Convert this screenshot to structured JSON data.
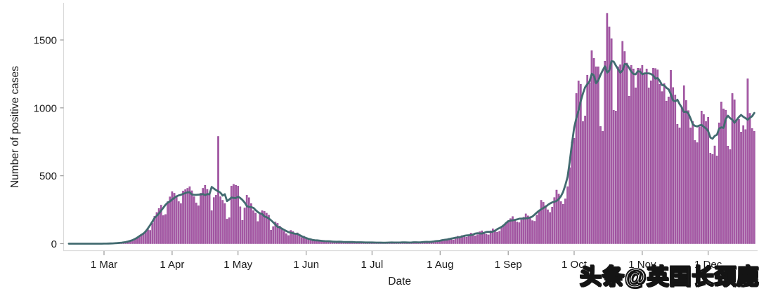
{
  "chart_data": {
    "type": "bar",
    "title": "",
    "xlabel": "Date",
    "ylabel": "Number of positive cases",
    "y_ticks": [
      0,
      500,
      1000,
      1500
    ],
    "ylim": [
      0,
      1770
    ],
    "x_tick_labels": [
      "1 Mar",
      "1 Apr",
      "1 May",
      "1 Jun",
      "1 Jul",
      "1 Aug",
      "1 Sep",
      "1 Oct",
      "1 Nov",
      "1 Dec"
    ],
    "x_tick_day_index": [
      0,
      31,
      61,
      92,
      122,
      153,
      184,
      214,
      245,
      275
    ],
    "start_label": "1 Mar",
    "lead_in_zero_days": 16,
    "grid": "off",
    "legend": "none",
    "bar_color": "#a85ba6",
    "bar_edge_color": "#8d4292",
    "line_color": "#426b70",
    "line_smoothing_window": 7,
    "axis_border_color": "#d9d9d9",
    "tick_color": "#999999",
    "label_color": "#1a1a1a",
    "values": [
      0,
      0,
      1,
      1,
      2,
      3,
      4,
      5,
      6,
      8,
      10,
      14,
      18,
      25,
      30,
      38,
      50,
      62,
      78,
      95,
      103,
      98,
      150,
      202,
      230,
      259,
      284,
      207,
      215,
      310,
      345,
      383,
      372,
      346,
      310,
      295,
      388,
      398,
      408,
      420,
      390,
      346,
      300,
      279,
      372,
      408,
      430,
      400,
      365,
      243,
      340,
      357,
      790,
      346,
      320,
      295,
      181,
      191,
      424,
      437,
      430,
      424,
      272,
      172,
      263,
      357,
      339,
      295,
      243,
      225,
      163,
      225,
      243,
      238,
      225,
      210,
      100,
      126,
      160,
      150,
      130,
      108,
      91,
      74,
      60,
      98,
      90,
      75,
      80,
      62,
      45,
      55,
      36,
      30,
      28,
      32,
      25,
      20,
      18,
      22,
      25,
      18,
      15,
      12,
      16,
      20,
      14,
      12,
      10,
      14,
      16,
      12,
      8,
      10,
      12,
      15,
      10,
      8,
      6,
      10,
      12,
      9,
      8,
      10,
      7,
      5,
      6,
      9,
      11,
      8,
      6,
      5,
      8,
      10,
      12,
      9,
      7,
      6,
      10,
      13,
      9,
      8,
      6,
      11,
      14,
      10,
      9,
      12,
      16,
      18,
      14,
      12,
      17,
      22,
      30,
      26,
      35,
      40,
      30,
      28,
      45,
      55,
      48,
      60,
      52,
      48,
      65,
      78,
      72,
      58,
      66,
      88,
      95,
      80,
      70,
      65,
      95,
      110,
      100,
      85,
      92,
      125,
      140,
      155,
      170,
      185,
      200,
      180,
      160,
      155,
      175,
      195,
      220,
      205,
      185,
      170,
      165,
      210,
      245,
      320,
      305,
      280,
      250,
      230,
      270,
      340,
      395,
      365,
      310,
      290,
      330,
      420,
      560,
      750,
      776,
      1106,
      1199,
      1174,
      900,
      941,
      1241,
      1184,
      1422,
      1365,
      1303,
      1303,
      863,
      827,
      1344,
      1696,
      1597,
      1510,
      982,
      977,
      1303,
      1318,
      1490,
      1415,
      1330,
      1086,
      1313,
      1287,
      1148,
      1292,
      1290,
      1313,
      1250,
      1287,
      1148,
      1200,
      1292,
      1290,
      1280,
      1174,
      1120,
      1180,
      1050,
      1081,
      1277,
      1150,
      1096,
      879,
      853,
      1000,
      1164,
      1055,
      980,
      853,
      900,
      760,
      744,
      860,
      977,
      951,
      900,
      931,
      667,
      657,
      720,
      646,
      890,
      1044,
      993,
      983,
      719,
      693,
      1106,
      1060,
      915,
      915,
      822,
      870,
      840,
      1215,
      960,
      848,
      827
    ]
  },
  "watermark": {
    "text": "头条@英国长颈鹿",
    "fill_color": "#ffffff",
    "outline_color": "#141414"
  }
}
